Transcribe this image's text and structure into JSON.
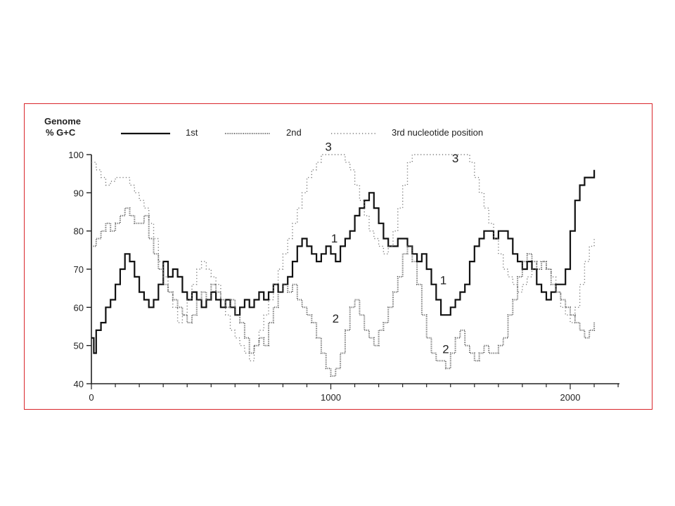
{
  "chart_data": {
    "type": "line",
    "ylabel_lines": [
      "Genome",
      "% G+C"
    ],
    "xlabel": "",
    "xlim": [
      0,
      2200
    ],
    "ylim": [
      40,
      100
    ],
    "x_ticks": [
      0,
      1000,
      2000
    ],
    "y_ticks": [
      40,
      50,
      60,
      70,
      80,
      90,
      100
    ],
    "grid": false,
    "legend": {
      "placement": "top",
      "entries": [
        "1st",
        "2nd",
        "3rd nucleotide position"
      ]
    },
    "series": [
      {
        "name": "1st",
        "style": "solid",
        "color": "#111111",
        "x": [
          0,
          10,
          20,
          40,
          60,
          80,
          100,
          120,
          140,
          160,
          180,
          200,
          220,
          240,
          260,
          280,
          300,
          320,
          340,
          360,
          380,
          400,
          420,
          440,
          460,
          480,
          500,
          520,
          540,
          560,
          580,
          600,
          620,
          640,
          660,
          680,
          700,
          720,
          740,
          760,
          780,
          800,
          820,
          840,
          860,
          880,
          900,
          920,
          940,
          960,
          980,
          1000,
          1020,
          1040,
          1060,
          1080,
          1100,
          1120,
          1140,
          1160,
          1180,
          1200,
          1220,
          1240,
          1260,
          1280,
          1300,
          1320,
          1340,
          1360,
          1380,
          1400,
          1420,
          1440,
          1460,
          1480,
          1500,
          1520,
          1540,
          1560,
          1580,
          1600,
          1620,
          1640,
          1660,
          1680,
          1700,
          1720,
          1740,
          1760,
          1780,
          1800,
          1820,
          1840,
          1860,
          1880,
          1900,
          1920,
          1940,
          1960,
          1980,
          2000,
          2020,
          2040,
          2060,
          2080,
          2100
        ],
        "y": [
          52,
          48,
          54,
          56,
          60,
          62,
          66,
          70,
          74,
          72,
          68,
          64,
          62,
          60,
          62,
          66,
          72,
          68,
          70,
          68,
          64,
          62,
          64,
          62,
          60,
          62,
          64,
          62,
          60,
          62,
          60,
          58,
          60,
          62,
          60,
          62,
          64,
          62,
          64,
          66,
          64,
          66,
          68,
          72,
          76,
          78,
          76,
          74,
          72,
          74,
          76,
          74,
          72,
          76,
          78,
          80,
          84,
          86,
          88,
          90,
          86,
          82,
          78,
          76,
          76,
          78,
          78,
          76,
          74,
          72,
          74,
          70,
          66,
          62,
          58,
          58,
          60,
          62,
          64,
          66,
          72,
          76,
          78,
          80,
          80,
          78,
          80,
          80,
          78,
          74,
          72,
          70,
          72,
          70,
          66,
          64,
          62,
          64,
          66,
          66,
          70,
          80,
          88,
          92,
          94,
          94,
          96
        ]
      },
      {
        "name": "2nd",
        "style": "dense-dotted",
        "color": "#555555",
        "x": [
          0,
          20,
          40,
          60,
          80,
          100,
          120,
          140,
          160,
          180,
          200,
          220,
          240,
          260,
          280,
          300,
          320,
          340,
          360,
          380,
          400,
          420,
          440,
          460,
          480,
          500,
          520,
          540,
          560,
          580,
          600,
          620,
          640,
          660,
          680,
          700,
          720,
          740,
          760,
          780,
          800,
          820,
          840,
          860,
          880,
          900,
          920,
          940,
          960,
          980,
          1000,
          1020,
          1040,
          1060,
          1080,
          1100,
          1120,
          1140,
          1160,
          1180,
          1200,
          1220,
          1240,
          1260,
          1280,
          1300,
          1320,
          1340,
          1360,
          1380,
          1400,
          1420,
          1440,
          1460,
          1480,
          1500,
          1520,
          1540,
          1560,
          1580,
          1600,
          1620,
          1640,
          1660,
          1680,
          1700,
          1720,
          1740,
          1760,
          1780,
          1800,
          1820,
          1840,
          1860,
          1880,
          1900,
          1920,
          1940,
          1960,
          1980,
          2000,
          2020,
          2040,
          2060,
          2080,
          2100
        ],
        "y": [
          76,
          78,
          80,
          82,
          80,
          82,
          84,
          86,
          84,
          82,
          82,
          84,
          78,
          74,
          70,
          66,
          64,
          62,
          60,
          58,
          56,
          58,
          62,
          64,
          62,
          66,
          64,
          62,
          60,
          62,
          58,
          56,
          52,
          48,
          50,
          52,
          50,
          56,
          60,
          64,
          66,
          64,
          66,
          62,
          60,
          58,
          56,
          52,
          48,
          44,
          42,
          44,
          48,
          54,
          60,
          62,
          58,
          54,
          52,
          50,
          54,
          56,
          60,
          64,
          68,
          74,
          76,
          72,
          66,
          58,
          52,
          48,
          46,
          46,
          44,
          48,
          52,
          54,
          50,
          48,
          46,
          48,
          50,
          48,
          48,
          50,
          52,
          58,
          62,
          68,
          72,
          74,
          72,
          70,
          72,
          70,
          66,
          64,
          62,
          60,
          58,
          56,
          54,
          52,
          54,
          56
        ]
      },
      {
        "name": "3rd nucleotide position",
        "style": "sparse-dotted",
        "color": "#777777",
        "x": [
          0,
          20,
          40,
          60,
          80,
          100,
          120,
          140,
          160,
          180,
          200,
          220,
          240,
          260,
          280,
          300,
          320,
          340,
          360,
          380,
          400,
          420,
          440,
          460,
          480,
          500,
          520,
          540,
          560,
          580,
          600,
          620,
          640,
          660,
          680,
          700,
          720,
          740,
          760,
          780,
          800,
          820,
          840,
          860,
          880,
          900,
          920,
          940,
          960,
          980,
          1000,
          1020,
          1040,
          1060,
          1080,
          1100,
          1120,
          1140,
          1160,
          1180,
          1200,
          1220,
          1240,
          1260,
          1280,
          1300,
          1320,
          1340,
          1360,
          1380,
          1400,
          1420,
          1440,
          1460,
          1480,
          1500,
          1520,
          1540,
          1560,
          1580,
          1600,
          1620,
          1640,
          1660,
          1680,
          1700,
          1720,
          1740,
          1760,
          1780,
          1800,
          1820,
          1840,
          1860,
          1880,
          1900,
          1920,
          1940,
          1960,
          1980,
          2000,
          2020,
          2040,
          2060,
          2080,
          2100
        ],
        "y": [
          98,
          96,
          94,
          92,
          93,
          94,
          94,
          94,
          92,
          90,
          88,
          86,
          82,
          78,
          72,
          68,
          64,
          60,
          56,
          58,
          62,
          66,
          70,
          72,
          70,
          68,
          66,
          62,
          58,
          54,
          52,
          50,
          48,
          46,
          50,
          54,
          58,
          62,
          66,
          70,
          74,
          78,
          82,
          86,
          90,
          94,
          96,
          98,
          100,
          100,
          100,
          100,
          100,
          98,
          96,
          92,
          88,
          84,
          80,
          78,
          76,
          74,
          76,
          80,
          86,
          92,
          98,
          100,
          100,
          100,
          100,
          100,
          100,
          100,
          100,
          100,
          100,
          100,
          100,
          98,
          94,
          90,
          86,
          82,
          78,
          74,
          70,
          68,
          66,
          64,
          66,
          68,
          70,
          72,
          72,
          70,
          68,
          64,
          60,
          58,
          56,
          60,
          66,
          72,
          76,
          78
        ]
      }
    ],
    "annotations": [
      {
        "text": "3",
        "x": 990,
        "y": 101
      },
      {
        "text": "3",
        "x": 1520,
        "y": 98
      },
      {
        "text": "1",
        "x": 1015,
        "y": 77
      },
      {
        "text": "1",
        "x": 1470,
        "y": 66
      },
      {
        "text": "2",
        "x": 1020,
        "y": 56
      },
      {
        "text": "2",
        "x": 1480,
        "y": 48
      }
    ]
  }
}
